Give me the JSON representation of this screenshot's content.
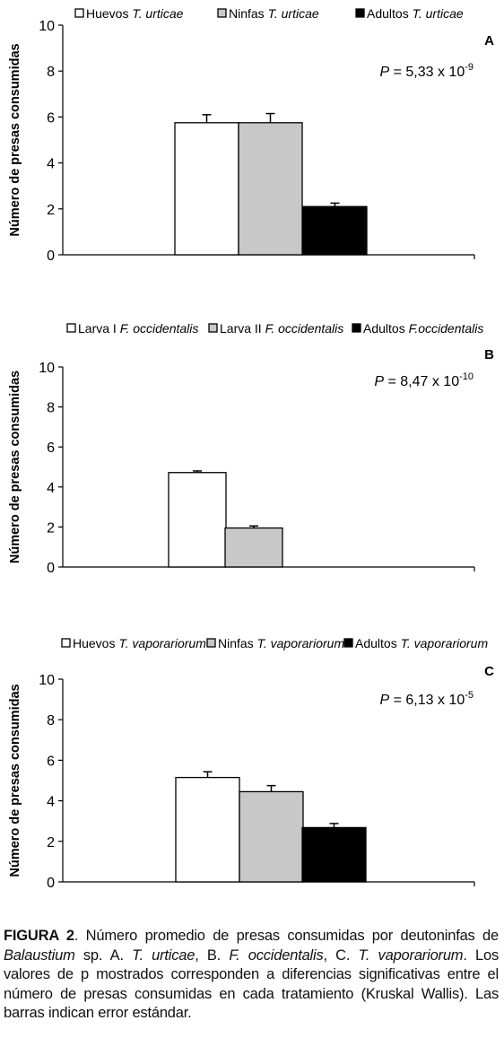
{
  "colors": {
    "white": "#ffffff",
    "gray": "#c8c8c8",
    "black": "#000000"
  },
  "chart_data": [
    {
      "type": "bar",
      "panel": "A",
      "ylabel": "Número de presas consumidas",
      "ylim": [
        0,
        10
      ],
      "yticks": [
        "0",
        "2",
        "4",
        "6",
        "8",
        "10"
      ],
      "pvalue": {
        "label": "P",
        "text": " = 5,33 x 10",
        "exp": "-9"
      },
      "legend": [
        {
          "plain": "Huevos ",
          "italic": "T. urticae",
          "color": "white"
        },
        {
          "plain": "Ninfas ",
          "italic": "T. urticae",
          "color": "gray"
        },
        {
          "plain": "Adultos ",
          "italic": "T. urticae",
          "color": "black"
        }
      ],
      "series": [
        {
          "name": "Huevos T. urticae",
          "value": 5.75,
          "error": 0.35
        },
        {
          "name": "Ninfas T. urticae",
          "value": 5.75,
          "error": 0.4
        },
        {
          "name": "Adultos T. urticae",
          "value": 2.1,
          "error": 0.15
        }
      ]
    },
    {
      "type": "bar",
      "panel": "B",
      "ylabel": "Número de presas consumidas",
      "ylim": [
        0,
        10
      ],
      "yticks": [
        "0",
        "2",
        "4",
        "6",
        "8",
        "10"
      ],
      "pvalue": {
        "label": "P",
        "text": " = 8,47 x 10",
        "exp": "-10"
      },
      "legend": [
        {
          "plain": "Larva I ",
          "italic": "F. occidentalis",
          "color": "white"
        },
        {
          "plain": "Larva II ",
          "italic": "F. occidentalis",
          "color": "gray"
        },
        {
          "plain": "Adultos ",
          "italic": "F.occidentalis",
          "color": "black"
        }
      ],
      "series": [
        {
          "name": "Larva I F. occidentalis",
          "value": 4.72,
          "error": 0.08
        },
        {
          "name": "Larva II F. occidentalis",
          "value": 1.95,
          "error": 0.1
        }
      ]
    },
    {
      "type": "bar",
      "panel": "C",
      "ylabel": "Número de presas consumidas",
      "ylim": [
        0,
        10
      ],
      "yticks": [
        "0",
        "2",
        "4",
        "6",
        "8",
        "10"
      ],
      "pvalue": {
        "label": "P",
        "text": " = 6,13 x 10",
        "exp": "-5"
      },
      "legend": [
        {
          "plain": "Huevos ",
          "italic": "T. vaporariorum",
          "color": "white"
        },
        {
          "plain": "Ninfas ",
          "italic": "T. vaporariorum",
          "color": "gray"
        },
        {
          "plain": "Adultos ",
          "italic": "T. vaporariorum",
          "color": "black"
        }
      ],
      "series": [
        {
          "name": "Huevos T. vaporariorum",
          "value": 5.15,
          "error": 0.28
        },
        {
          "name": "Ninfas T. vaporariorum",
          "value": 4.45,
          "error": 0.3
        },
        {
          "name": "Adultos T. vaporariorum",
          "value": 2.68,
          "error": 0.2
        }
      ]
    }
  ],
  "caption": {
    "label": "FIGURA 2",
    "t1": ". Número promedio de presas consumidas por deutoninfas de ",
    "i1": "Balaustium",
    "t2": " sp. A. ",
    "i2": "T. urticae",
    "t3": ", B. ",
    "i3": "F. occidentalis",
    "t4": ", C. ",
    "i4": "T. vaporariorum",
    "t5": ". Los valores de p mostrados corresponden a diferencias significativas entre el número de presas consumidas en cada tratamiento (Kruskal Wallis). Las barras indican error estándar."
  }
}
